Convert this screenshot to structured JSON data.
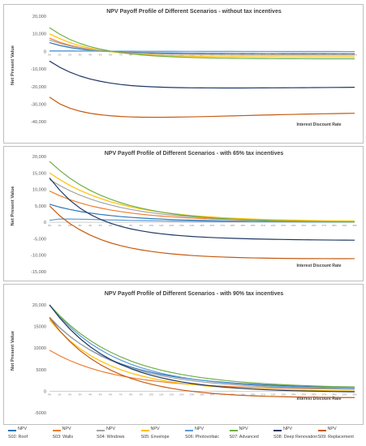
{
  "colors": {
    "S02": "#2e75b6",
    "S03": "#ed7d31",
    "S04": "#a5a5a5",
    "S05": "#ffc000",
    "S06": "#5b9bd5",
    "S07": "#70ad47",
    "S08": "#1f3864",
    "S09": "#c55a11"
  },
  "legend": [
    {
      "key": "S02",
      "series": "NPV",
      "label": "S02: Roof"
    },
    {
      "key": "S03",
      "series": "NPV",
      "label": "S03: Walls"
    },
    {
      "key": "S04",
      "series": "NPV",
      "label": "S04: Windows"
    },
    {
      "key": "S05",
      "series": "NPV",
      "label": "S05: Envelope"
    },
    {
      "key": "S06",
      "series": "NPV",
      "label": "S06: Photovoltaic"
    },
    {
      "key": "S07",
      "series": "NPV",
      "label": "S07: Advanced"
    },
    {
      "key": "S08",
      "series": "NPV",
      "label": "S08: Deep Renovation"
    },
    {
      "key": "S09",
      "series": "NPV",
      "label": "S09: Replacement"
    }
  ],
  "chart_data": [
    {
      "type": "line",
      "title": "NPV Payoff Profile of Different Scenarios - without tax incentives",
      "xlabel": "Interest Discount Rate",
      "ylabel": "Net Present Value",
      "ylim": [
        -45000,
        20000
      ],
      "yticks": [
        20000,
        10000,
        0,
        -10000,
        -20000,
        -30000,
        -40000
      ],
      "ytick_labels": [
        "20,000",
        "10,000",
        "0",
        "-10,000",
        "-20,000",
        "-30,000",
        "-40,000"
      ],
      "x": [
        "0%",
        "1%",
        "2%",
        "3%",
        "4%",
        "5%",
        "6%",
        "7%",
        "8%",
        "9%",
        "10%",
        "11%",
        "12%",
        "13%",
        "14%",
        "15%",
        "16%",
        "17%",
        "18%",
        "19%",
        "20%",
        "21%",
        "22%",
        "23%",
        "24%",
        "25%",
        "26%",
        "27%",
        "28%",
        "29%",
        "30%"
      ],
      "series": [
        {
          "key": "S02",
          "values": [
            5000,
            3400,
            2200,
            1300,
            700,
            250,
            -100,
            -350,
            -500,
            -650,
            -750,
            -850,
            -900,
            -950,
            -1000,
            -1050,
            -1080,
            -1100,
            -1120,
            -1140,
            -1160,
            -1170,
            -1180,
            -1190,
            -1200,
            -1210,
            -1215,
            -1220,
            -1225,
            -1230,
            -1235
          ]
        },
        {
          "key": "S03",
          "values": [
            7500,
            5200,
            3500,
            2200,
            1200,
            450,
            -100,
            -500,
            -800,
            -1050,
            -1250,
            -1400,
            -1520,
            -1620,
            -1700,
            -1760,
            -1810,
            -1850,
            -1880,
            -1900,
            -1920,
            -1935,
            -1945,
            -1955,
            -1962,
            -1968,
            -1972,
            -1976,
            -1980,
            -1983,
            -1985
          ]
        },
        {
          "key": "S04",
          "values": [
            6500,
            4600,
            3100,
            1900,
            1000,
            300,
            -200,
            -600,
            -900,
            -1150,
            -1350,
            -1500,
            -1620,
            -1720,
            -1800,
            -1860,
            -1910,
            -1950,
            -1980,
            -2000,
            -2020,
            -2035,
            -2045,
            -2055,
            -2062,
            -2068,
            -2072,
            -2076,
            -2080,
            -2083,
            -2085
          ]
        },
        {
          "key": "S05",
          "values": [
            10000,
            7300,
            5000,
            3200,
            1800,
            700,
            -150,
            -800,
            -1300,
            -1700,
            -2000,
            -2250,
            -2450,
            -2600,
            -2720,
            -2820,
            -2900,
            -2960,
            -3010,
            -3050,
            -3080,
            -3100,
            -3120,
            -3135,
            -3145,
            -3155,
            -3160,
            -3165,
            -3170,
            -3174,
            -3178
          ]
        },
        {
          "key": "S06",
          "values": [
            300,
            300,
            280,
            250,
            220,
            190,
            160,
            140,
            120,
            100,
            80,
            60,
            50,
            40,
            30,
            20,
            10,
            0,
            -10,
            -20,
            -25,
            -30,
            -35,
            -40,
            -45,
            -50,
            -55,
            -60,
            -65,
            -70,
            -75
          ]
        },
        {
          "key": "S07",
          "values": [
            13500,
            9800,
            6800,
            4500,
            2700,
            1300,
            200,
            -700,
            -1400,
            -1950,
            -2400,
            -2750,
            -3050,
            -3280,
            -3470,
            -3620,
            -3740,
            -3840,
            -3920,
            -3990,
            -4040,
            -4080,
            -4115,
            -4140,
            -4160,
            -4175,
            -4188,
            -4198,
            -4205,
            -4212,
            -4218
          ]
        },
        {
          "key": "S08",
          "values": [
            -5500,
            -9000,
            -11800,
            -14000,
            -15700,
            -17000,
            -18000,
            -18800,
            -19400,
            -19800,
            -20100,
            -20350,
            -20500,
            -20620,
            -20700,
            -20750,
            -20780,
            -20800,
            -20800,
            -20790,
            -20770,
            -20750,
            -20720,
            -20690,
            -20650,
            -20610,
            -20570,
            -20530,
            -20490,
            -20450,
            -20410
          ]
        },
        {
          "key": "S09",
          "values": [
            -26000,
            -29800,
            -32300,
            -34000,
            -35200,
            -36000,
            -36600,
            -37000,
            -37250,
            -37400,
            -37450,
            -37450,
            -37400,
            -37300,
            -37200,
            -37080,
            -36950,
            -36800,
            -36650,
            -36500,
            -36350,
            -36200,
            -36060,
            -35920,
            -35800,
            -35680,
            -35570,
            -35460,
            -35360,
            -35270,
            -35180
          ]
        }
      ]
    },
    {
      "type": "line",
      "title": "NPV Payoff Profile of Different Scenarios - with 65% tax incentives",
      "xlabel": "Interest Discount Rate",
      "ylabel": "Net Present Value",
      "ylim": [
        -15000,
        20000
      ],
      "yticks": [
        20000,
        15000,
        10000,
        5000,
        0,
        -5000,
        -10000,
        -15000
      ],
      "ytick_labels": [
        "20,000",
        "15,000",
        "10,000",
        "5,000",
        "0",
        "-5,000",
        "-10,000",
        "-15,000"
      ],
      "x": [
        "0%",
        "1%",
        "2%",
        "3%",
        "4%",
        "5%",
        "6%",
        "7%",
        "8%",
        "9%",
        "10%",
        "11%",
        "12%",
        "13%",
        "14%",
        "15%",
        "16%",
        "17%",
        "18%",
        "19%",
        "20%",
        "21%",
        "22%",
        "23%",
        "24%",
        "25%",
        "26%",
        "27%",
        "28%",
        "29%",
        "30%"
      ],
      "series": [
        {
          "key": "S02",
          "values": [
            5500,
            4600,
            3900,
            3300,
            2800,
            2400,
            2050,
            1750,
            1500,
            1300,
            1120,
            970,
            840,
            730,
            640,
            560,
            490,
            430,
            380,
            340,
            300,
            265,
            235,
            210,
            190,
            170,
            155,
            140,
            128,
            118,
            110
          ]
        },
        {
          "key": "S03",
          "values": [
            9500,
            8100,
            6900,
            5900,
            5050,
            4350,
            3750,
            3250,
            2820,
            2450,
            2140,
            1880,
            1650,
            1460,
            1290,
            1150,
            1020,
            910,
            820,
            740,
            670,
            610,
            555,
            505,
            462,
            425,
            392,
            362,
            336,
            313,
            292
          ]
        },
        {
          "key": "S04",
          "values": [
            13000,
            11200,
            9600,
            8250,
            7100,
            6100,
            5250,
            4520,
            3900,
            3370,
            2920,
            2530,
            2200,
            1920,
            1680,
            1470,
            1290,
            1140,
            1010,
            895,
            795,
            710,
            635,
            570,
            512,
            462,
            418,
            380,
            346,
            316,
            290
          ]
        },
        {
          "key": "S05",
          "values": [
            15000,
            13000,
            11200,
            9700,
            8400,
            7250,
            6250,
            5400,
            4670,
            4050,
            3520,
            3070,
            2680,
            2350,
            2060,
            1810,
            1600,
            1410,
            1250,
            1110,
            990,
            885,
            793,
            713,
            643,
            582,
            528,
            481,
            439,
            402,
            370
          ]
        },
        {
          "key": "S06",
          "values": [
            600,
            1000,
            1000,
            950,
            880,
            800,
            720,
            650,
            580,
            520,
            470,
            420,
            380,
            340,
            310,
            280,
            250,
            225,
            205,
            185,
            168,
            152,
            138,
            126,
            115,
            105,
            96,
            88,
            81,
            75,
            69
          ]
        },
        {
          "key": "S07",
          "values": [
            18500,
            15800,
            13400,
            11400,
            9700,
            8250,
            7000,
            5950,
            5050,
            4300,
            3650,
            3100,
            2630,
            2230,
            1890,
            1600,
            1350,
            1140,
            960,
            810,
            680,
            570,
            470,
            390,
            320,
            260,
            210,
            165,
            125,
            90,
            60
          ]
        },
        {
          "key": "S08",
          "values": [
            13500,
            9800,
            6700,
            4300,
            2400,
            900,
            -300,
            -1250,
            -2000,
            -2600,
            -3100,
            -3500,
            -3820,
            -4080,
            -4300,
            -4480,
            -4630,
            -4760,
            -4870,
            -4960,
            -5040,
            -5110,
            -5170,
            -5220,
            -5265,
            -5305,
            -5340,
            -5370,
            -5397,
            -5420,
            -5440
          ]
        },
        {
          "key": "S09",
          "values": [
            5000,
            2000,
            -400,
            -2300,
            -3900,
            -5200,
            -6250,
            -7100,
            -7800,
            -8380,
            -8850,
            -9250,
            -9580,
            -9850,
            -10080,
            -10270,
            -10420,
            -10550,
            -10660,
            -10750,
            -10820,
            -10880,
            -10930,
            -10970,
            -11000,
            -11020,
            -11035,
            -11045,
            -11050,
            -11050,
            -11045
          ]
        }
      ]
    },
    {
      "type": "line",
      "title": "NPV Payoff Profile of Different Scenarios - with 90% tax incentives",
      "xlabel": "Interest Discount Rate",
      "ylabel": "Net Present Value",
      "ylim": [
        -5000,
        20000
      ],
      "yticks": [
        20000,
        15000,
        10000,
        5000,
        0,
        -5000
      ],
      "ytick_labels": [
        "20,000",
        "15000",
        "10000",
        "5000",
        "0",
        "-5000"
      ],
      "x": [
        "0%",
        "1%",
        "2%",
        "3%",
        "4%",
        "5%",
        "6%",
        "7%",
        "8%",
        "9%",
        "10%",
        "11%",
        "12%",
        "13%",
        "14%",
        "15%",
        "16%",
        "17%",
        "18%",
        "19%",
        "20%",
        "21%",
        "22%",
        "23%",
        "24%",
        "25%",
        "26%",
        "27%",
        "28%",
        "29%",
        "30%"
      ],
      "series": [
        {
          "key": "S02",
          "values": [
            17000,
            14700,
            12700,
            11000,
            9550,
            8300,
            7250,
            6350,
            5580,
            4920,
            4360,
            3880,
            3460,
            3100,
            2790,
            2520,
            2290,
            2090,
            1910,
            1760,
            1620,
            1500,
            1390,
            1300,
            1220,
            1150,
            1085,
            1030,
            980,
            935,
            895
          ]
        },
        {
          "key": "S03",
          "values": [
            9500,
            8200,
            7100,
            6150,
            5350,
            4650,
            4070,
            3570,
            3140,
            2770,
            2450,
            2180,
            1940,
            1740,
            1560,
            1410,
            1280,
            1160,
            1060,
            970,
            890,
            820,
            760,
            705,
            655,
            612,
            574,
            540,
            510,
            484,
            460
          ]
        },
        {
          "key": "S04",
          "values": [
            17200,
            14800,
            12750,
            11000,
            9500,
            8200,
            7100,
            6150,
            5350,
            4650,
            4050,
            3550,
            3120,
            2750,
            2420,
            2150,
            1910,
            1700,
            1520,
            1360,
            1230,
            1110,
            1000,
            910,
            830,
            760,
            700,
            645,
            597,
            555,
            518
          ]
        },
        {
          "key": "S05",
          "values": [
            16500,
            13900,
            11700,
            9850,
            8300,
            7000,
            5900,
            4980,
            4200,
            3550,
            3000,
            2540,
            2150,
            1820,
            1540,
            1300,
            1100,
            930,
            785,
            660,
            555,
            465,
            388,
            322,
            266,
            218,
            177,
            142,
            112,
            86,
            64
          ]
        },
        {
          "key": "S06",
          "values": [
            20000,
            17300,
            14900,
            12850,
            11100,
            9600,
            8300,
            7200,
            6250,
            5450,
            4750,
            4150,
            3650,
            3210,
            2840,
            2520,
            2240,
            2000,
            1790,
            1610,
            1450,
            1310,
            1190,
            1080,
            990,
            910,
            840,
            775,
            720,
            670,
            625
          ]
        },
        {
          "key": "S07",
          "values": [
            20000,
            17500,
            15300,
            13400,
            11750,
            10300,
            9050,
            7950,
            7000,
            6180,
            5470,
            4860,
            4330,
            3870,
            3470,
            3120,
            2820,
            2550,
            2320,
            2110,
            1930,
            1770,
            1630,
            1505,
            1395,
            1300,
            1215,
            1140,
            1075,
            1015,
            962
          ]
        },
        {
          "key": "S08",
          "values": [
            20000,
            17000,
            14400,
            12200,
            10300,
            8700,
            7350,
            6200,
            5220,
            4390,
            3690,
            3100,
            2590,
            2160,
            1790,
            1480,
            1210,
            980,
            790,
            630,
            490,
            370,
            270,
            185,
            113,
            52,
            0,
            -44,
            -81,
            -112,
            -138
          ]
        },
        {
          "key": "S09",
          "values": [
            17000,
            14000,
            11500,
            9400,
            7650,
            6150,
            4900,
            3850,
            2970,
            2230,
            1610,
            1090,
            650,
            280,
            -30,
            -290,
            -510,
            -690,
            -840,
            -970,
            -1070,
            -1160,
            -1230,
            -1290,
            -1340,
            -1380,
            -1410,
            -1435,
            -1455,
            -1470,
            -1480
          ]
        }
      ]
    }
  ]
}
